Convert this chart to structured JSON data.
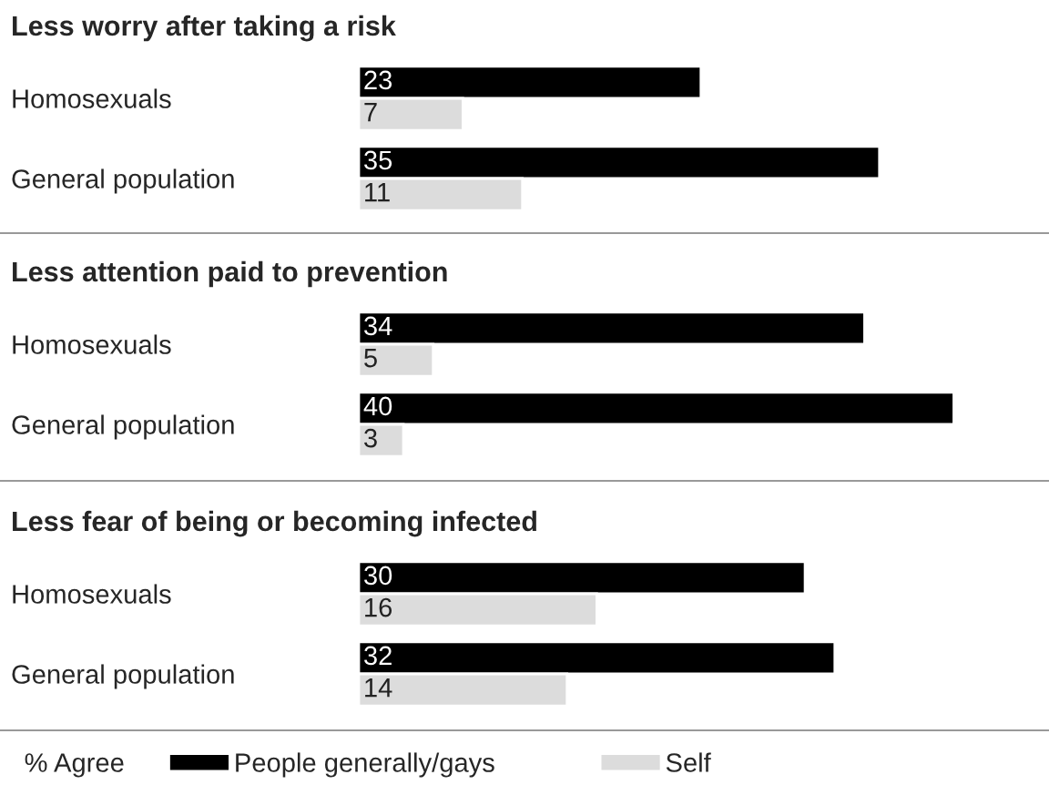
{
  "chart_data": [
    {
      "type": "bar",
      "orientation": "horizontal",
      "title": "Less worry after taking a risk",
      "categories": [
        "Homosexuals",
        "General population"
      ],
      "data_labels": true,
      "legend": false,
      "series": [
        {
          "color": "#000000",
          "values": [
            23,
            35
          ]
        },
        {
          "color": "#dcdcdc",
          "values": [
            7,
            11
          ]
        }
      ]
    },
    {
      "type": "bar",
      "orientation": "horizontal",
      "title": "Less attention paid to prevention",
      "categories": [
        "Homosexuals",
        "General population"
      ],
      "data_labels": true,
      "legend": false,
      "series": [
        {
          "color": "#000000",
          "values": [
            34,
            40
          ]
        },
        {
          "color": "#dcdcdc",
          "values": [
            5,
            3
          ]
        }
      ]
    },
    {
      "type": "bar",
      "orientation": "horizontal",
      "title": "Less fear of being or becoming infected",
      "categories": [
        "Homosexuals",
        "General population"
      ],
      "data_labels": true,
      "legend": "bottom",
      "legend_title": "% Agree",
      "series": [
        {
          "name": "People generally/gays",
          "color": "#000000",
          "values": [
            30,
            32
          ]
        },
        {
          "name": "Self",
          "color": "#dcdcdc",
          "values": [
            16,
            14
          ]
        }
      ]
    }
  ]
}
